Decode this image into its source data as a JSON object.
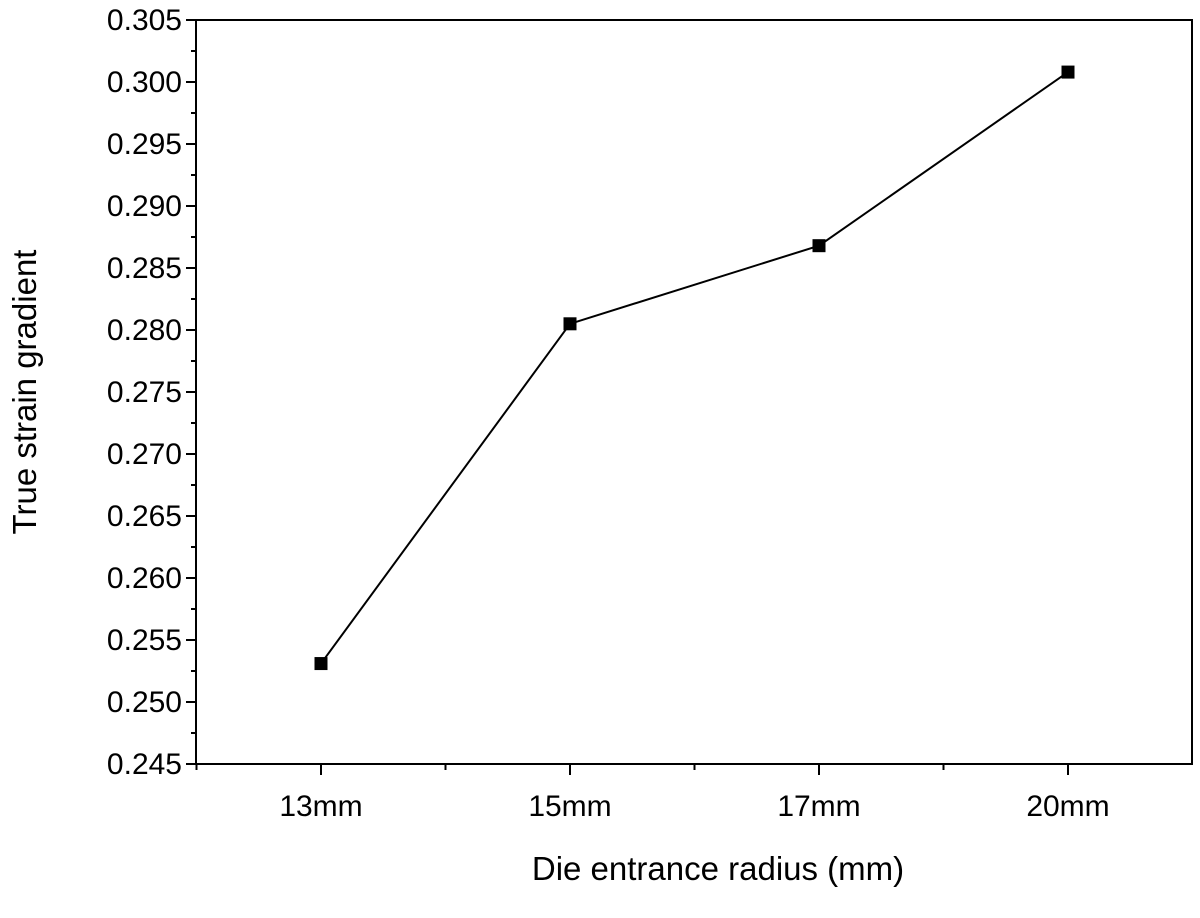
{
  "chart_data": {
    "type": "line",
    "title": "",
    "xlabel": "Die entrance radius (mm)",
    "ylabel": "True strain gradient",
    "categories": [
      "13mm",
      "15mm",
      "17mm",
      "20mm"
    ],
    "values": [
      0.2531,
      0.2805,
      0.2868,
      0.3008
    ],
    "ylim": [
      0.245,
      0.305
    ],
    "yticks": [
      "0.245",
      "0.250",
      "0.255",
      "0.260",
      "0.265",
      "0.270",
      "0.275",
      "0.280",
      "0.285",
      "0.290",
      "0.295",
      "0.300",
      "0.305"
    ],
    "grid": false,
    "legend": "none",
    "marker": "square",
    "line_color": "#000000"
  }
}
